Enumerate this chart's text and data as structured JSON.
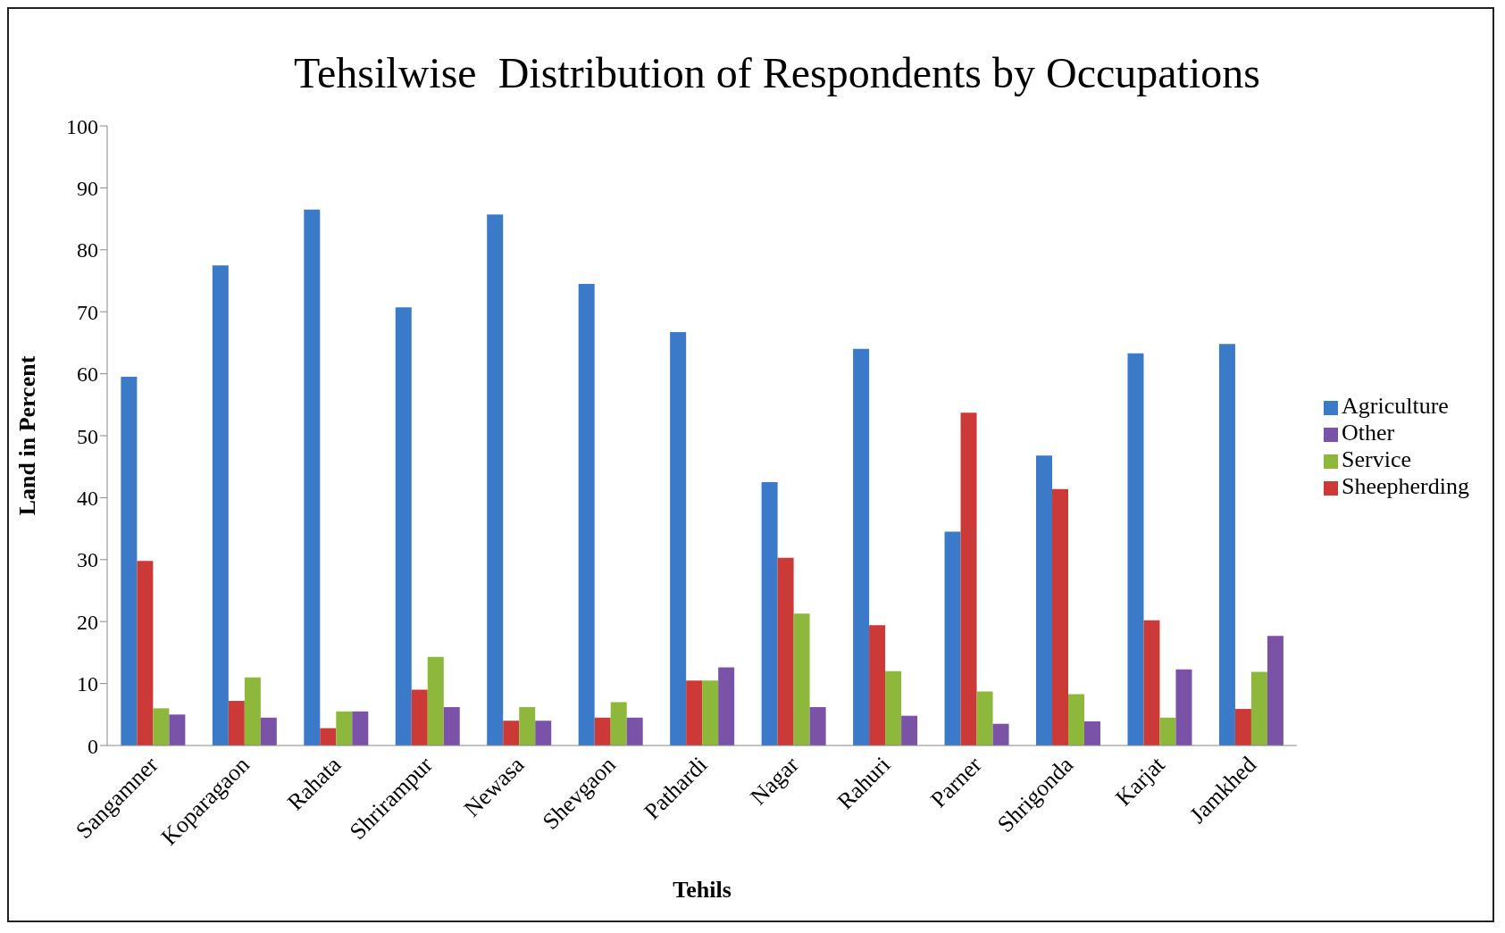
{
  "chart_data": {
    "type": "bar",
    "title": "Tehsilwise  Distribution of Respondents by Occupations",
    "xlabel": "Tehils",
    "ylabel": "Land in Percent",
    "categories": [
      "Sangamner",
      "Koparagaon",
      "Rahata",
      "Shrirampur",
      "Newasa",
      "Shevgaon",
      "Pathardi",
      "Nagar",
      "Rahuri",
      "Parner",
      "Shrigonda",
      "Karjat",
      "Jamkhed"
    ],
    "series": [
      {
        "name": "Agriculture",
        "color": "#3b7ac8",
        "values": [
          59.5,
          77.5,
          86.5,
          70.7,
          85.7,
          74.5,
          66.7,
          42.5,
          64,
          34.5,
          46.8,
          63.3,
          64.8
        ]
      },
      {
        "name": "Sheepherding",
        "color": "#cc3a38",
        "values": [
          29.8,
          7.2,
          2.8,
          9,
          4,
          4.5,
          10.5,
          30.3,
          19.4,
          53.7,
          41.4,
          20.2,
          5.9
        ]
      },
      {
        "name": "Service",
        "color": "#8db83c",
        "values": [
          6,
          11,
          5.5,
          14.3,
          6.2,
          7,
          10.5,
          21.3,
          12,
          8.7,
          8.3,
          4.5,
          11.9
        ]
      },
      {
        "name": "Other",
        "color": "#7a53a8",
        "values": [
          5,
          4.5,
          5.5,
          6.2,
          4,
          4.5,
          12.6,
          6.2,
          4.8,
          3.5,
          3.9,
          12.3,
          17.7
        ]
      }
    ],
    "ylim": [
      0,
      100
    ],
    "yticks": [
      0,
      10,
      20,
      30,
      40,
      50,
      60,
      70,
      80,
      90,
      100
    ],
    "grid": false,
    "legend": "right"
  }
}
